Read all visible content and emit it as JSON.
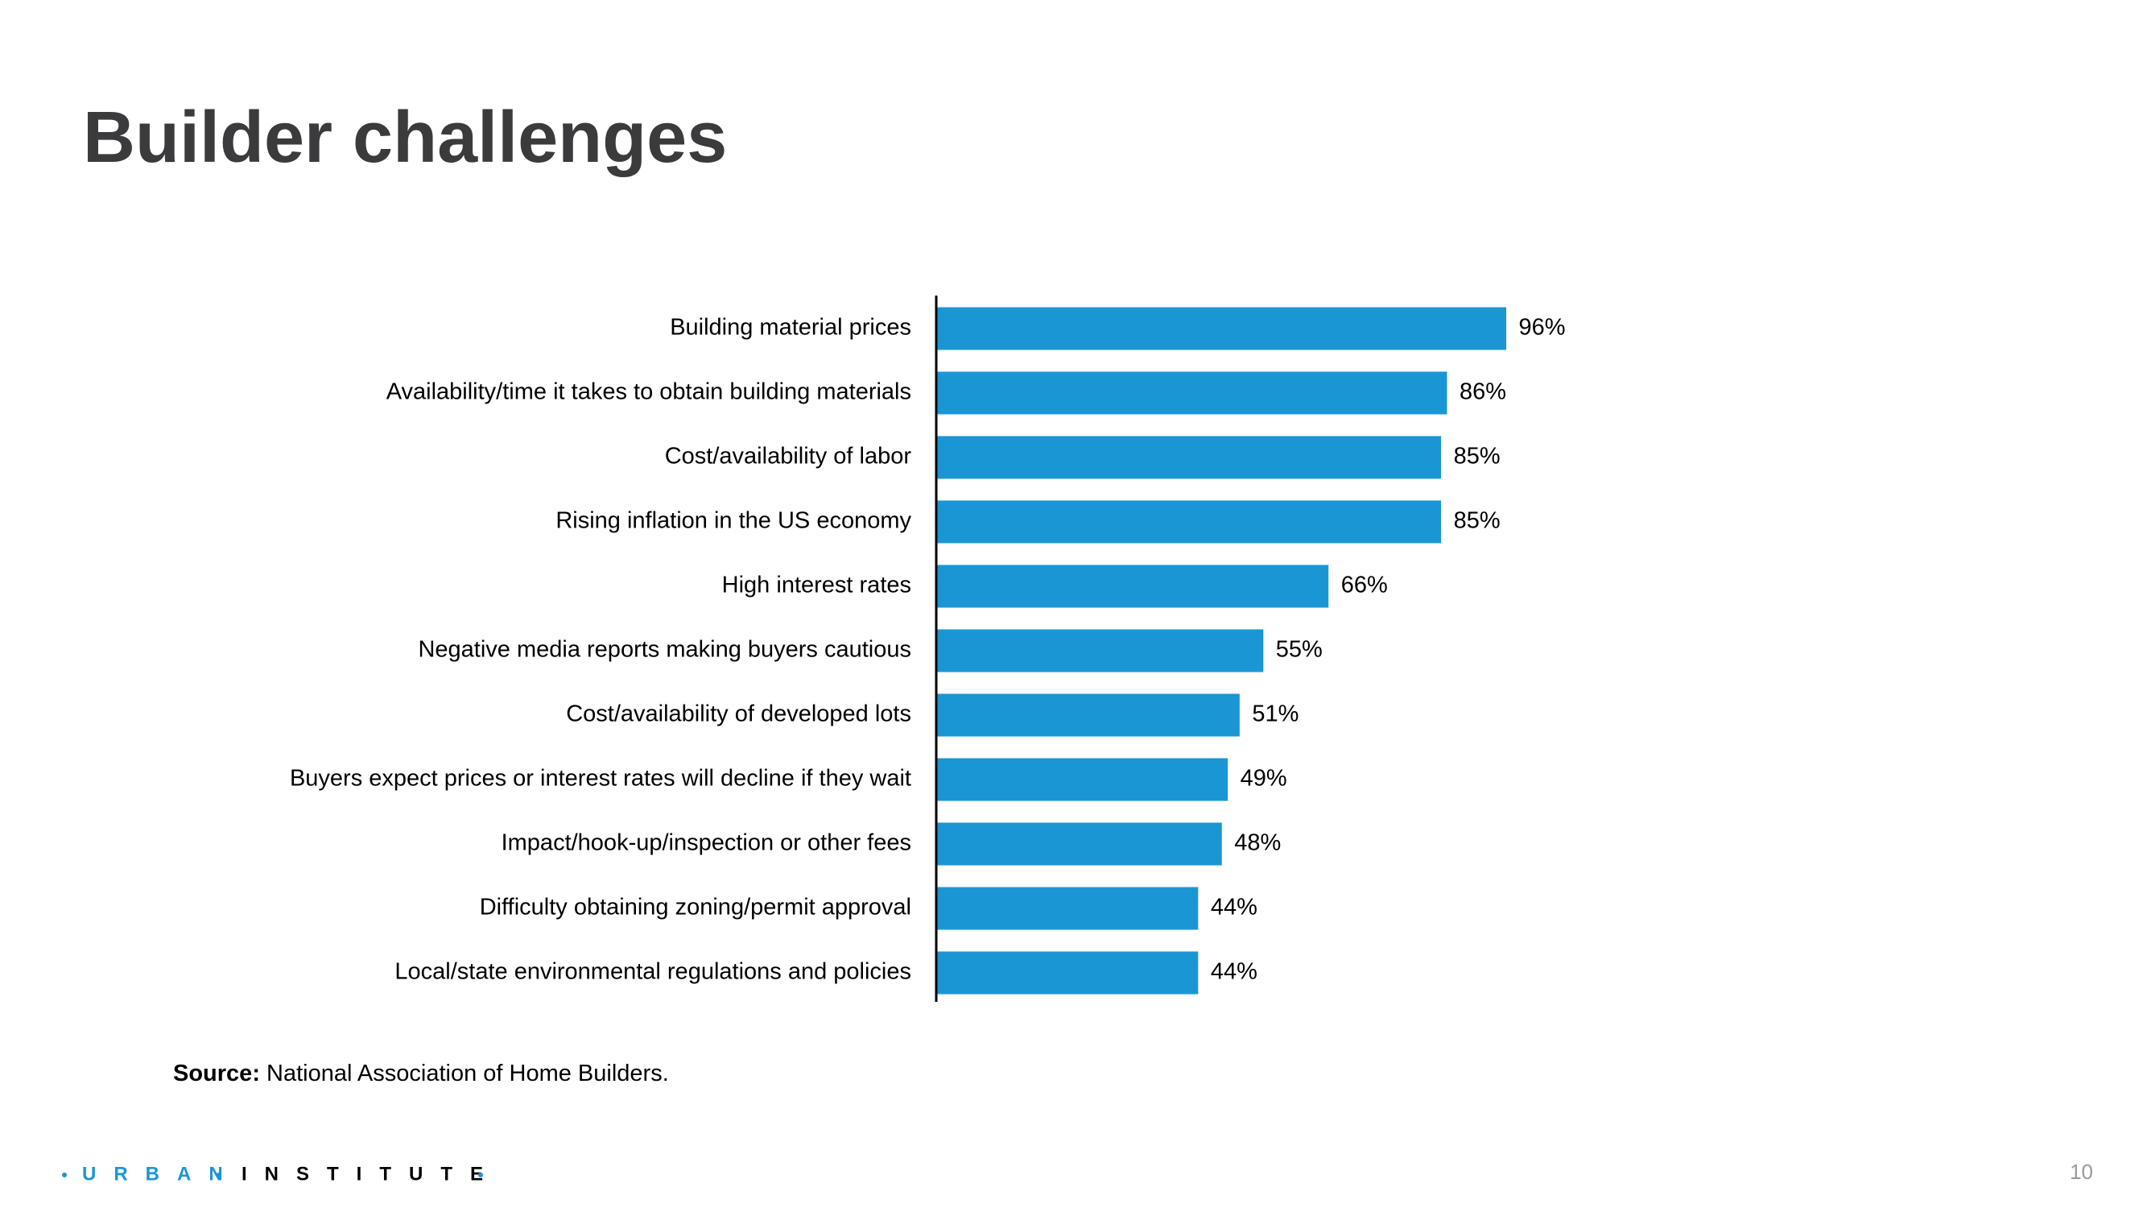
{
  "header": {
    "title": "Builder challenges"
  },
  "chart_data": {
    "type": "bar",
    "orientation": "horizontal",
    "categories": [
      "Building material prices",
      "Availability/time it takes to obtain building materials",
      "Cost/availability of labor",
      "Rising inflation in the US economy",
      "High interest rates",
      "Negative media reports making buyers cautious",
      "Cost/availability of developed lots",
      "Buyers expect prices or interest rates will decline if they wait",
      "Impact/hook-up/inspection or other fees",
      "Difficulty obtaining zoning/permit approval",
      "Local/state environmental regulations and policies"
    ],
    "values": [
      96,
      86,
      85,
      85,
      66,
      55,
      51,
      49,
      48,
      44,
      44
    ],
    "value_labels": [
      "96%",
      "86%",
      "85%",
      "85%",
      "66%",
      "55%",
      "51%",
      "49%",
      "48%",
      "44%",
      "44%"
    ],
    "color": "#1b96d4"
  },
  "source": {
    "label": "Source:",
    "text": "National Association of Home Builders."
  },
  "footer": {
    "logo_left": "URBAN",
    "logo_right": "INSTITUTE",
    "page_number": "10"
  }
}
